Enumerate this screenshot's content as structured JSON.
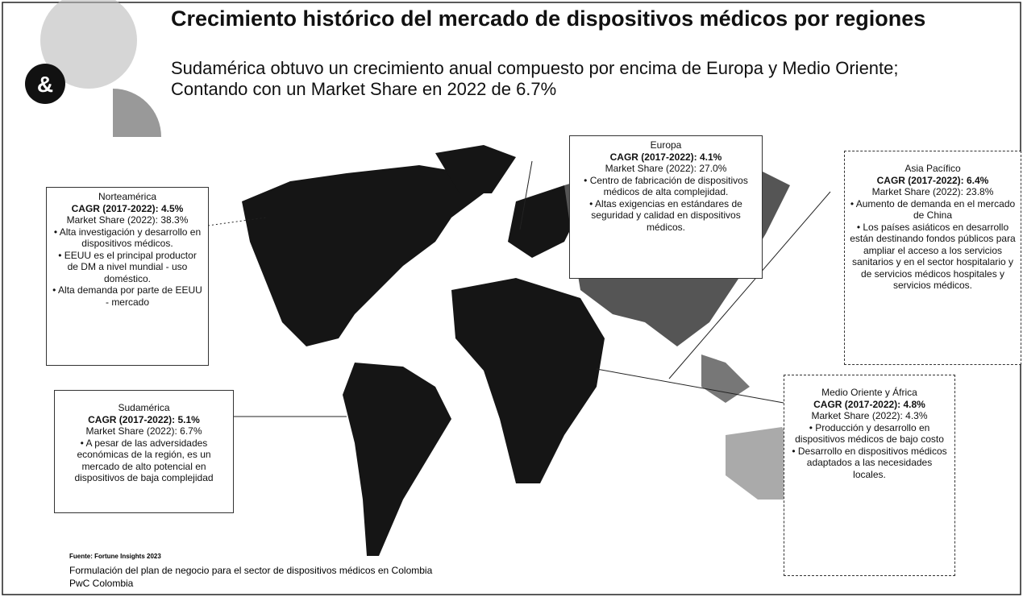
{
  "header": {
    "logo": "&",
    "title": "Crecimiento histórico del mercado de dispositivos médicos por regiones",
    "subtitle": "Sudamérica obtuvo un crecimiento anual compuesto por encima de Europa y Medio Oriente; Contando con un Market Share en 2022 de 6.7%"
  },
  "regions": [
    {
      "name": "Norteamérica",
      "cagr": "CAGR (2017-2022): 4.5%",
      "share": "Market Share (2022): 38.3%",
      "bullets": [
        "Alta investigación y desarrollo en dispositivos médicos.",
        "EEUU es el principal productor de DM a nivel mundial - uso doméstico.",
        "Alta demanda por parte de EEUU - mercado"
      ]
    },
    {
      "name": "Europa",
      "cagr": "CAGR (2017-2022): 4.1%",
      "share": "Market Share (2022): 27.0%",
      "bullets": [
        "Centro de fabricación de dispositivos médicos de alta complejidad.",
        "Altas exigencias en estándares de seguridad y calidad en dispositivos médicos."
      ]
    },
    {
      "name": "Asia Pacífico",
      "cagr": "CAGR (2017-2022): 6.4%",
      "share": "Market Share (2022): 23.8%",
      "bullets": [
        "Aumento de demanda en el mercado de China",
        "Los países asiáticos en desarrollo están destinando fondos públicos para ampliar el acceso a los servicios sanitarios y en el sector hospitalario y de servicios médicos hospitales y servicios médicos."
      ]
    },
    {
      "name": "Sudamérica",
      "cagr": "CAGR (2017-2022): 5.1%",
      "share": "Market Share (2022): 6.7%",
      "bullets": [
        "A pesar de las adversidades económicas de la región, es un mercado de alto potencial en dispositivos de baja complejidad"
      ]
    },
    {
      "name": "Medio Oriente y África",
      "cagr": "CAGR (2017-2022): 4.8%",
      "share": "Market Share (2022): 4.3%",
      "bullets": [
        "Producción y desarrollo en dispositivos médicos de bajo costo",
        "Desarrollo en dispositivos médicos adaptados a las necesidades locales."
      ]
    }
  ],
  "footer": {
    "source": "Fuente: Fortune Insights 2023",
    "line1": "Formulación del plan de negocio para el sector de dispositivos médicos en Colombia",
    "line2": "PwC Colombia"
  }
}
